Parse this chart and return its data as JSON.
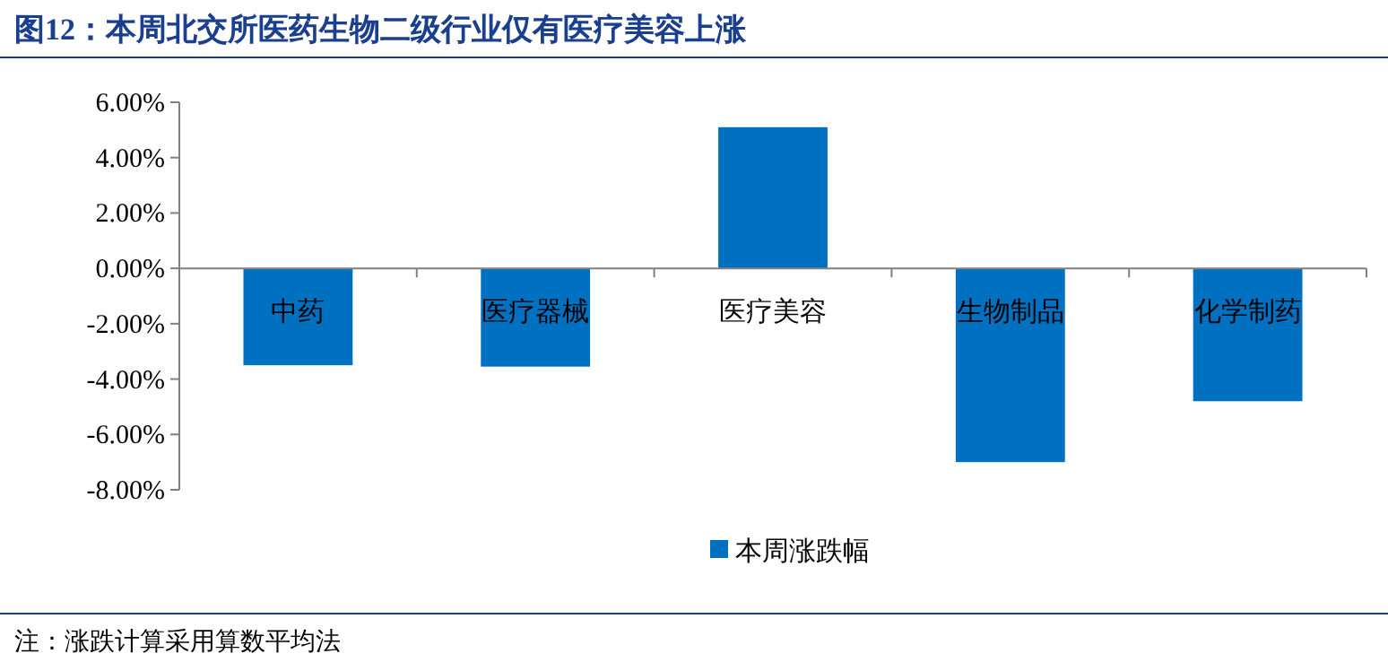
{
  "chart_data": {
    "type": "bar",
    "title": "图12：本周北交所医药生物二级行业仅有医疗美容上涨",
    "categories": [
      "中药",
      "医疗器械",
      "医疗美容",
      "生物制品",
      "化学制药"
    ],
    "series": [
      {
        "name": "本周涨跌幅",
        "color": "#0070c0",
        "values": [
          -3.5,
          -3.55,
          5.1,
          -7.0,
          -4.8
        ]
      }
    ],
    "ylim": [
      -8,
      6
    ],
    "yticks": [
      {
        "value": -8,
        "label": "-8.00%"
      },
      {
        "value": -6,
        "label": "-6.00%"
      },
      {
        "value": -4,
        "label": "-4.00%"
      },
      {
        "value": -2,
        "label": "-2.00%"
      },
      {
        "value": 0,
        "label": "0.00%"
      },
      {
        "value": 2,
        "label": "2.00%"
      },
      {
        "value": 4,
        "label": "4.00%"
      },
      {
        "value": 6,
        "label": "6.00%"
      }
    ],
    "legend": "bottom",
    "grid": false,
    "annotations": [
      "注：涨跌计算采用算数平均法"
    ]
  }
}
